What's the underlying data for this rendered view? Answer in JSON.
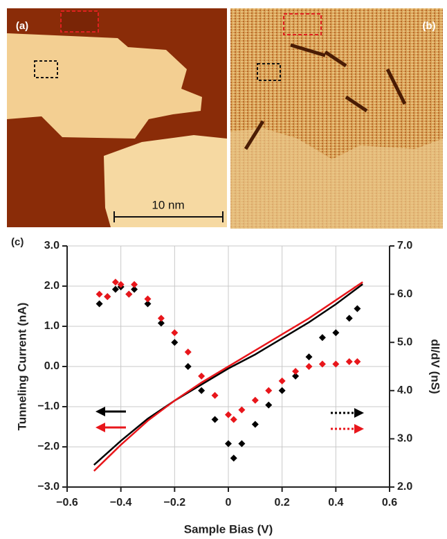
{
  "panel_labels": [
    "(a)",
    "(b)",
    "(c)"
  ],
  "scale_bar": "10 nm",
  "chart_data": {
    "type": "line",
    "xlabel": "Sample Bias (V)",
    "ylabel": "Tunneling Current (nA)",
    "y2label": "dI/dV (nS)",
    "xlim": [
      -0.6,
      0.6
    ],
    "xticks": [
      {
        "value": -0.6,
        "label": "−0.6"
      },
      {
        "value": -0.4,
        "label": "−0.4"
      },
      {
        "value": -0.2,
        "label": "−0.2"
      },
      0,
      0.2,
      0.4,
      0.6
    ],
    "ylim": [
      -3,
      3
    ],
    "yticks": [
      {
        "value": -3,
        "label": "−3.0"
      },
      {
        "value": -2,
        "label": "−2.0"
      },
      {
        "value": -1,
        "label": "−1.0"
      },
      {
        "value": 0,
        "label": "0.0"
      },
      {
        "value": 1,
        "label": "1.0"
      },
      {
        "value": 2,
        "label": "2.0"
      },
      {
        "value": 3,
        "label": "3.0"
      }
    ],
    "y2lim": [
      2,
      7
    ],
    "y2ticks": [
      {
        "value": 2,
        "label": "2.0"
      },
      {
        "value": 3,
        "label": "3.0"
      },
      {
        "value": 4,
        "label": "4.0"
      },
      {
        "value": 5,
        "label": "5.0"
      },
      {
        "value": 6,
        "label": "6.0"
      },
      {
        "value": 7,
        "label": "7.0"
      }
    ],
    "grid": true,
    "series": [
      {
        "color": "#000000",
        "mode": "line",
        "x": [
          -0.5,
          -0.4,
          -0.3,
          -0.2,
          -0.1,
          0,
          0.1,
          0.2,
          0.3,
          0.4,
          0.5
        ],
        "values": [
          -2.45,
          -1.85,
          -1.3,
          -0.85,
          -0.45,
          -0.05,
          0.3,
          0.7,
          1.1,
          1.55,
          2.05
        ]
      },
      {
        "color": "#e8161b",
        "mode": "line",
        "x": [
          -0.5,
          -0.4,
          -0.3,
          -0.2,
          -0.1,
          0,
          0.1,
          0.2,
          0.3,
          0.4,
          0.5
        ],
        "values": [
          -2.6,
          -1.95,
          -1.35,
          -0.85,
          -0.4,
          0,
          0.4,
          0.8,
          1.2,
          1.65,
          2.1
        ]
      },
      {
        "color": "#000000",
        "mode": "markers",
        "axis": "y2",
        "x": [
          -0.48,
          -0.45,
          -0.42,
          -0.4,
          -0.37,
          -0.35,
          -0.3,
          -0.25,
          -0.2,
          -0.15,
          -0.1,
          -0.05,
          0,
          0.02,
          0.05,
          0.1,
          0.15,
          0.2,
          0.25,
          0.3,
          0.35,
          0.4,
          0.45,
          0.48
        ],
        "values": [
          5.8,
          5.95,
          6.1,
          6.15,
          6.0,
          6.1,
          5.8,
          5.4,
          5.0,
          4.5,
          4.0,
          3.4,
          2.9,
          2.6,
          2.9,
          3.3,
          3.7,
          4.0,
          4.3,
          4.7,
          5.1,
          5.2,
          5.5,
          5.7
        ]
      },
      {
        "color": "#e8161b",
        "mode": "markers",
        "axis": "y2",
        "x": [
          -0.48,
          -0.45,
          -0.42,
          -0.4,
          -0.37,
          -0.35,
          -0.3,
          -0.25,
          -0.2,
          -0.15,
          -0.1,
          -0.05,
          0,
          0.02,
          0.05,
          0.1,
          0.15,
          0.2,
          0.25,
          0.3,
          0.35,
          0.4,
          0.45,
          0.48
        ],
        "values": [
          6.0,
          5.95,
          6.25,
          6.2,
          6.0,
          6.2,
          5.9,
          5.5,
          5.2,
          4.8,
          4.3,
          3.9,
          3.5,
          3.4,
          3.6,
          3.8,
          4.0,
          4.2,
          4.4,
          4.5,
          4.55,
          4.55,
          4.6,
          4.6
        ]
      }
    ]
  }
}
